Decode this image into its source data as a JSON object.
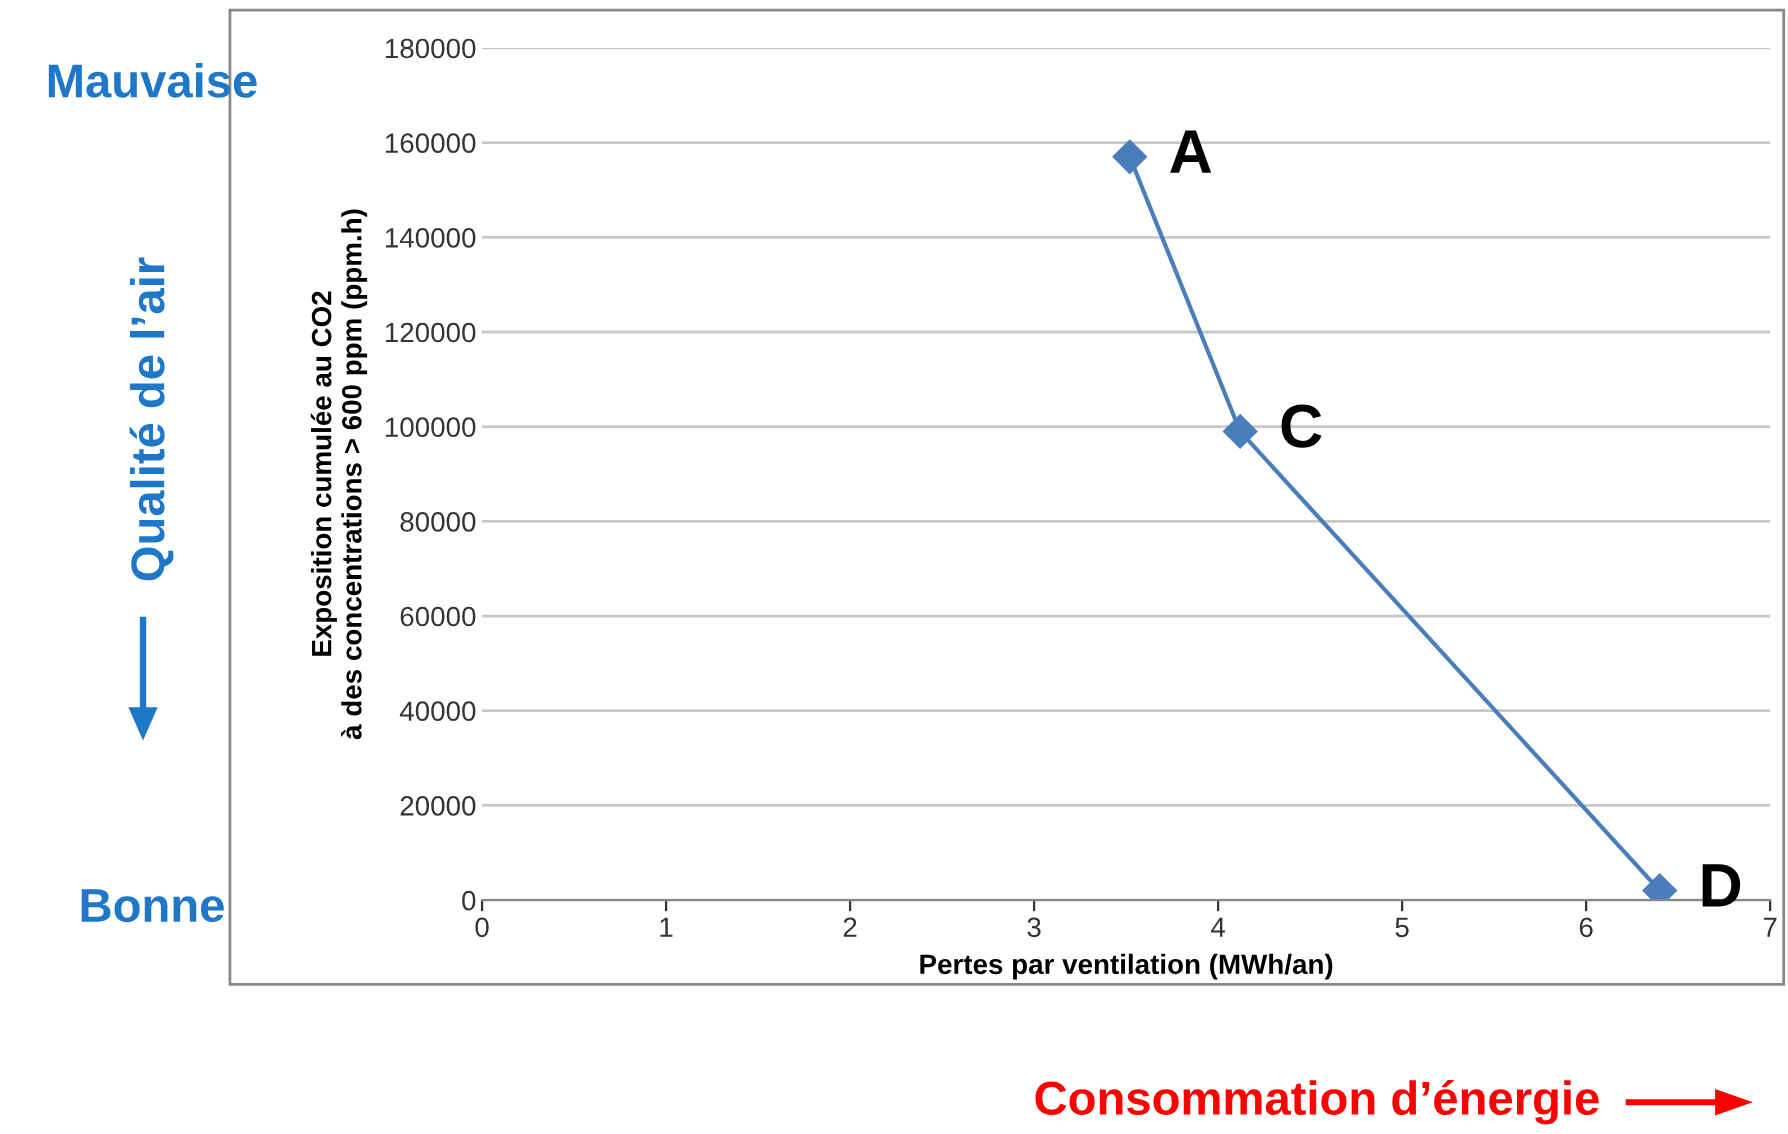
{
  "chart_data": {
    "type": "line",
    "xlabel": "Pertes par ventilation (MWh/an)",
    "ylabel": "Exposition cumulée au CO2\nà des concentrations > 600 ppm (ppm.h)",
    "x": [
      3.52,
      4.12,
      6.4
    ],
    "series": [
      {
        "color": "#4a7ebb",
        "values": [
          157000,
          99000,
          2000
        ]
      }
    ],
    "xlim": [
      0,
      7
    ],
    "xticks": [
      0,
      1,
      2,
      3,
      4,
      5,
      6,
      7
    ],
    "ylim": [
      0,
      180000
    ],
    "yticks": [
      0,
      20000,
      40000,
      60000,
      80000,
      100000,
      120000,
      140000,
      160000,
      180000
    ],
    "grid": "y",
    "marker": "diamond",
    "line_style": "solid",
    "legend": false,
    "annotations": [
      {
        "text": "A",
        "x": 3.52,
        "y": 157000
      },
      {
        "text": "C",
        "x": 4.12,
        "y": 99000
      },
      {
        "text": "D",
        "x": 6.4,
        "y": 2000
      },
      "Mauvaise",
      "Qualité de l’air",
      "Bonne",
      "Consommation d’énergie"
    ]
  }
}
